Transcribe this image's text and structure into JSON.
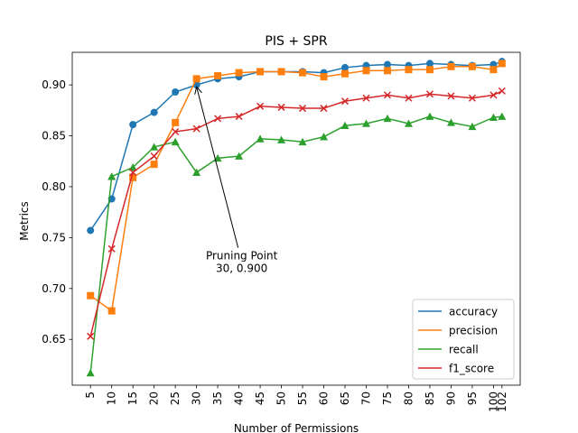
{
  "chart_data": {
    "type": "line",
    "title": "PIS + SPR",
    "xlabel": "Number of Permissions",
    "ylabel": "Metrics",
    "x": [
      5,
      10,
      15,
      20,
      25,
      30,
      35,
      40,
      45,
      50,
      55,
      60,
      65,
      70,
      75,
      80,
      85,
      90,
      95,
      100,
      102
    ],
    "xlim": [
      0.7,
      106.3
    ],
    "ylim": [
      0.605,
      0.932
    ],
    "y_ticks": [
      0.65,
      0.7,
      0.75,
      0.8,
      0.85,
      0.9
    ],
    "grid": false,
    "legend": "lower-right",
    "series": [
      {
        "name": "accuracy",
        "color": "#1f77b4",
        "marker": "circle",
        "values": [
          0.757,
          0.788,
          0.861,
          0.873,
          0.893,
          0.9,
          0.906,
          0.908,
          0.913,
          0.913,
          0.913,
          0.912,
          0.917,
          0.919,
          0.92,
          0.919,
          0.921,
          0.92,
          0.919,
          0.92,
          0.923
        ]
      },
      {
        "name": "precision",
        "color": "#ff7f0e",
        "marker": "square",
        "values": [
          0.693,
          0.678,
          0.809,
          0.822,
          0.863,
          0.906,
          0.909,
          0.912,
          0.913,
          0.913,
          0.912,
          0.908,
          0.911,
          0.914,
          0.914,
          0.915,
          0.915,
          0.918,
          0.918,
          0.915,
          0.921
        ]
      },
      {
        "name": "recall",
        "color": "#2ca02c",
        "marker": "triangle",
        "values": [
          0.617,
          0.81,
          0.819,
          0.839,
          0.844,
          0.814,
          0.828,
          0.83,
          0.847,
          0.846,
          0.844,
          0.849,
          0.86,
          0.862,
          0.867,
          0.862,
          0.869,
          0.863,
          0.859,
          0.868,
          0.869
        ]
      },
      {
        "name": "f1_score",
        "color": "#d62728",
        "marker": "x",
        "values": [
          0.653,
          0.739,
          0.814,
          0.83,
          0.854,
          0.857,
          0.867,
          0.869,
          0.879,
          0.878,
          0.877,
          0.877,
          0.884,
          0.887,
          0.89,
          0.887,
          0.891,
          0.889,
          0.887,
          0.89,
          0.894
        ]
      }
    ],
    "annotation": {
      "line1": "Pruning Point",
      "line2": "30, 0.900",
      "point": [
        30,
        0.9
      ],
      "text_anchor": [
        30,
        0.725
      ]
    }
  }
}
